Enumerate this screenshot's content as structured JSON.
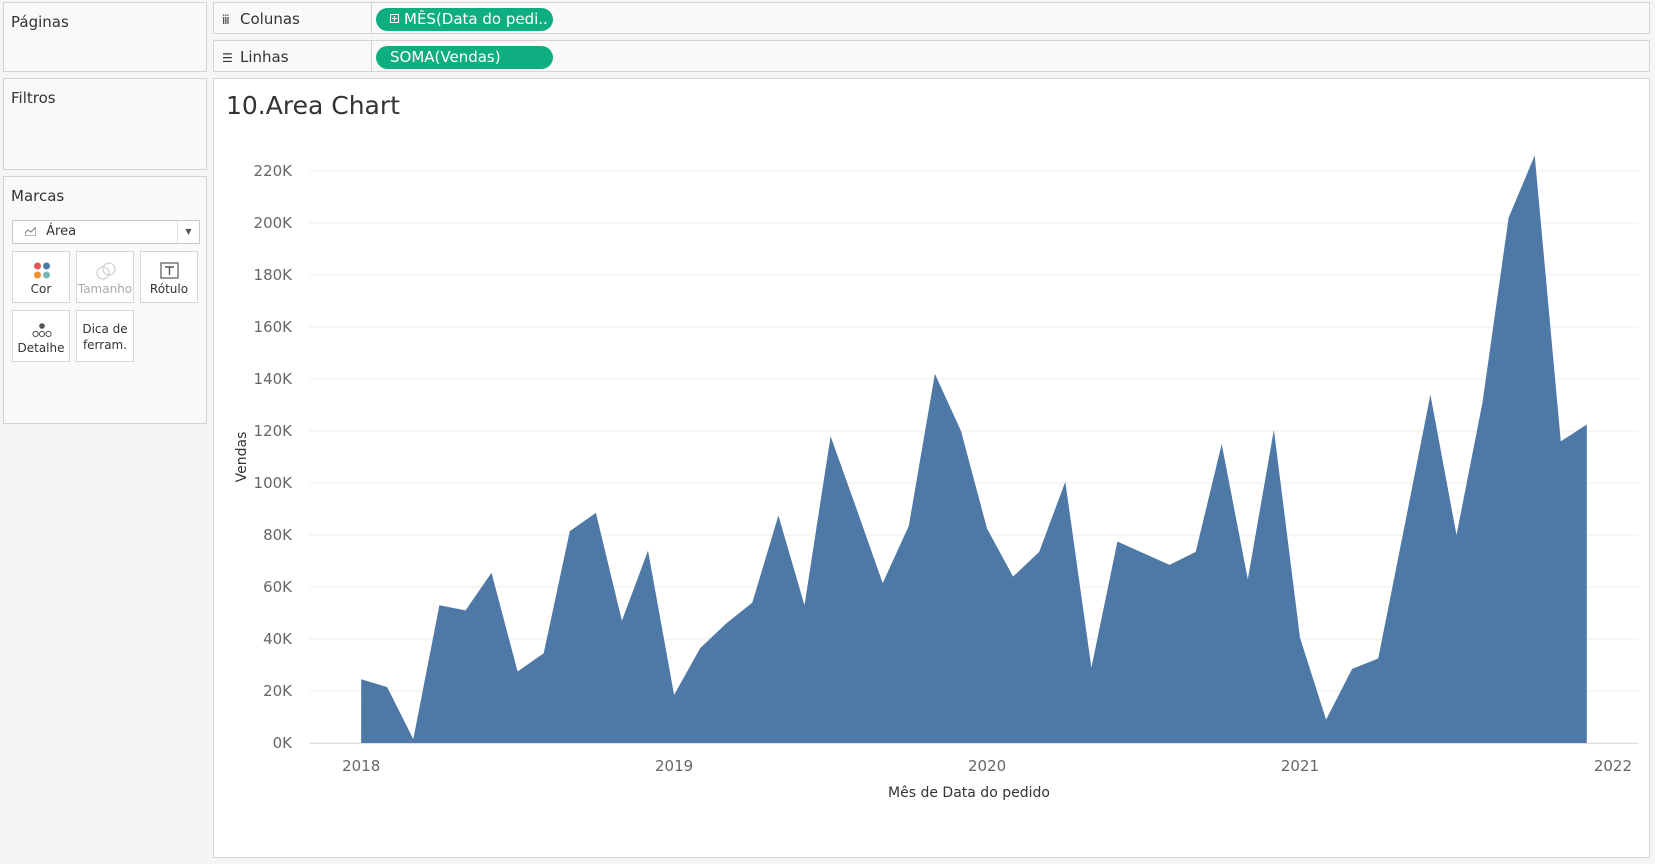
{
  "panels": {
    "pages": "Páginas",
    "filters": "Filtros",
    "marks": "Marcas"
  },
  "marks": {
    "type_label": "Área",
    "buttons": {
      "color": "Cor",
      "size": "Tamanho",
      "label": "Rótulo",
      "detail": "Detalhe",
      "tooltip": "Dica de ferram."
    }
  },
  "shelves": {
    "columns_label": "Colunas",
    "columns_pill": "MÊS(Data do pedi..",
    "rows_label": "Linhas",
    "rows_pill": "SOMA(Vendas)"
  },
  "sheet": {
    "title": "10.Area Chart"
  },
  "colors": {
    "area_fill": "#4e79a7",
    "pill": "#0fae80"
  },
  "chart_data": {
    "type": "area",
    "xlabel": "Mês de Data do pedido",
    "ylabel": "Vendas",
    "x_ticks": [
      "2018",
      "2019",
      "2020",
      "2021",
      "2022"
    ],
    "y_ticks": [
      "0K",
      "20K",
      "40K",
      "60K",
      "80K",
      "100K",
      "120K",
      "140K",
      "160K",
      "180K",
      "200K",
      "220K"
    ],
    "ylim": [
      0,
      230000
    ],
    "xlim": [
      "2017-11",
      "2022-02"
    ],
    "grid": "horizontal",
    "x": [
      "2018-01",
      "2018-02",
      "2018-03",
      "2018-04",
      "2018-05",
      "2018-06",
      "2018-07",
      "2018-08",
      "2018-09",
      "2018-10",
      "2018-11",
      "2018-12",
      "2019-01",
      "2019-02",
      "2019-03",
      "2019-04",
      "2019-05",
      "2019-06",
      "2019-07",
      "2019-08",
      "2019-09",
      "2019-10",
      "2019-11",
      "2019-12",
      "2020-01",
      "2020-02",
      "2020-03",
      "2020-04",
      "2020-05",
      "2020-06",
      "2020-07",
      "2020-08",
      "2020-09",
      "2020-10",
      "2020-11",
      "2020-12",
      "2021-01",
      "2021-02",
      "2021-03",
      "2021-04",
      "2021-05",
      "2021-06",
      "2021-07",
      "2021-08",
      "2021-09",
      "2021-10",
      "2021-11",
      "2021-12"
    ],
    "values": [
      24500,
      21500,
      1500,
      53000,
      51000,
      65500,
      27500,
      34500,
      81500,
      88500,
      47000,
      74000,
      18500,
      36500,
      46000,
      54000,
      87500,
      53000,
      118000,
      90000,
      61500,
      83500,
      142000,
      120000,
      82500,
      64000,
      73500,
      100500,
      29000,
      77500,
      73000,
      68500,
      73500,
      115000,
      63000,
      120500,
      40500,
      9000,
      28500,
      32500,
      83000,
      134000,
      80000,
      131000,
      202000,
      226000,
      116000,
      122500
    ]
  }
}
